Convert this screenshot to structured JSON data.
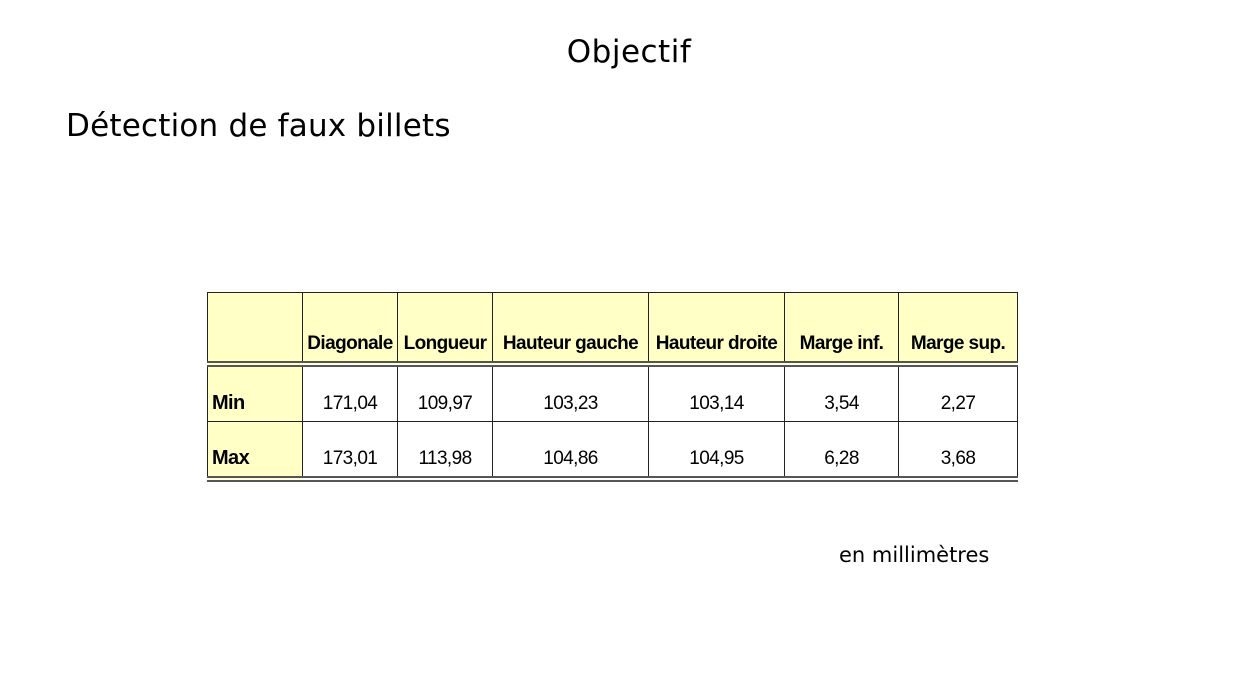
{
  "slide": {
    "title": "Objectif",
    "subtitle": "Détection de faux billets",
    "unit_note": "en millimètres"
  },
  "table": {
    "columns": [
      "",
      "Diagonale",
      "Longueur",
      "Hauteur gauche",
      "Hauteur droite",
      "Marge inf.",
      "Marge sup."
    ],
    "rows": [
      {
        "label": "Min",
        "values": [
          "171,04",
          "109,97",
          "103,23",
          "103,14",
          "3,54",
          "2,27"
        ]
      },
      {
        "label": "Max",
        "values": [
          "173,01",
          "113,98",
          "104,86",
          "104,95",
          "6,28",
          "3,68"
        ]
      }
    ],
    "header_color": "#ffffc6"
  }
}
